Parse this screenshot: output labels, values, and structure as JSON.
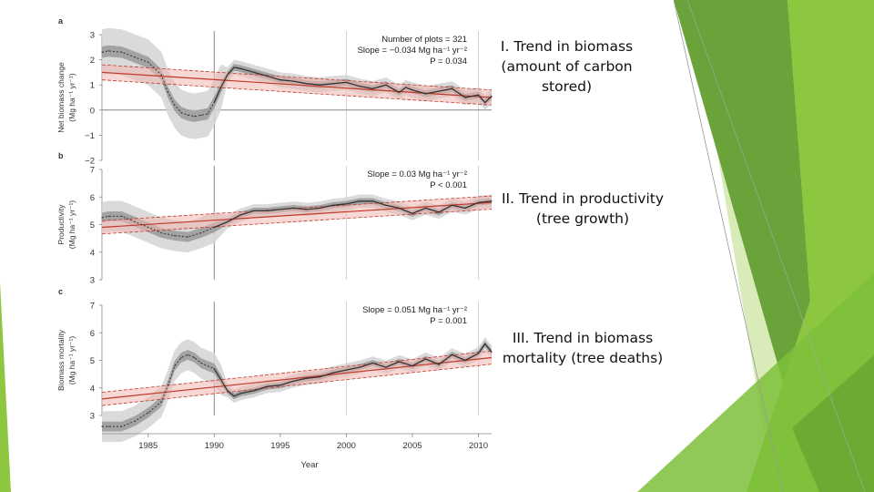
{
  "captions": [
    {
      "lines": [
        "I. Trend in biomass",
        "(amount of carbon",
        "stored)"
      ]
    },
    {
      "lines": [
        "II. Trend in productivity",
        "(tree growth)"
      ]
    },
    {
      "lines": [
        "III. Trend in biomass",
        "mortality (tree deaths)"
      ]
    }
  ],
  "colors": {
    "trend_line": "#c0392b",
    "trend_band": "#f2b8b0",
    "series_line": "#333333",
    "band_dark": "#777777",
    "band_light": "#d4d4d4",
    "green_1": "#8dc63f",
    "green_2": "#6aa33a",
    "green_3": "#c9e29b"
  },
  "chart_data": [
    {
      "type": "line",
      "panel_label": "a",
      "ylabel": "Net biomass change",
      "ylabel_units": "(Mg ha⁻¹ yr⁻¹)",
      "ylim": [
        -2,
        3
      ],
      "yticks": [
        "3",
        "2",
        "1",
        "0",
        "−1",
        "−2"
      ],
      "xlim": [
        1981.5,
        2011
      ],
      "xticks": [
        "1985",
        "1990",
        "1995",
        "2000",
        "2005",
        "2010"
      ],
      "xlabel": "Year",
      "annotations": [
        "Number of plots = 321",
        "Slope = −0.034 Mg ha⁻¹ yr⁻²",
        "P = 0.034"
      ],
      "reference_lines_x": [
        1990,
        2000,
        2010
      ],
      "reference_line_y": 0,
      "series": [
        {
          "name": "",
          "x": [
            1981.5,
            1982,
            1983,
            1984,
            1985,
            1986,
            1986.5,
            1987,
            1987.5,
            1988,
            1988.5,
            1989,
            1989.5,
            1990,
            1990.5,
            1991,
            1991.5,
            1992,
            1993,
            1994,
            1995,
            1996,
            1997,
            1998,
            1999,
            2000,
            2001,
            2002,
            2003,
            2004,
            2004.5,
            2005,
            2006,
            2007,
            2008,
            2009,
            2010,
            2010.5,
            2011
          ],
          "y": [
            2.3,
            2.35,
            2.3,
            2.1,
            1.9,
            1.4,
            0.7,
            0.2,
            -0.1,
            -0.2,
            -0.25,
            -0.2,
            -0.15,
            0.3,
            0.9,
            1.4,
            1.7,
            1.65,
            1.5,
            1.35,
            1.2,
            1.15,
            1.05,
            1.0,
            1.05,
            1.1,
            0.95,
            0.85,
            1.0,
            0.7,
            0.9,
            0.8,
            0.65,
            0.75,
            0.85,
            0.5,
            0.6,
            0.3,
            0.55
          ]
        }
      ],
      "trend": {
        "x": [
          1981.5,
          2011
        ],
        "y": [
          1.5,
          0.5
        ]
      }
    },
    {
      "type": "line",
      "panel_label": "b",
      "ylabel": "Productivity",
      "ylabel_units": "(Mg ha⁻¹ yr⁻¹)",
      "ylim": [
        3,
        7
      ],
      "yticks": [
        "7",
        "6",
        "5",
        "4",
        "3"
      ],
      "xlim": [
        1981.5,
        2011
      ],
      "xticks": [
        "1985",
        "1990",
        "1995",
        "2000",
        "2005",
        "2010"
      ],
      "xlabel": "Year",
      "annotations": [
        "Slope = 0.03 Mg ha⁻¹ yr⁻²",
        "P < 0.001"
      ],
      "reference_lines_x": [
        1990,
        2000,
        2010
      ],
      "series": [
        {
          "name": "",
          "x": [
            1981.5,
            1982,
            1983,
            1984,
            1985,
            1986,
            1987,
            1988,
            1989,
            1990,
            1991,
            1992,
            1993,
            1994,
            1995,
            1996,
            1997,
            1998,
            1999,
            2000,
            2001,
            2002,
            2003,
            2004,
            2005,
            2006,
            2007,
            2008,
            2009,
            2010,
            2011
          ],
          "y": [
            5.25,
            5.3,
            5.3,
            5.1,
            4.9,
            4.7,
            4.6,
            4.55,
            4.7,
            4.9,
            5.1,
            5.35,
            5.5,
            5.5,
            5.55,
            5.6,
            5.55,
            5.6,
            5.7,
            5.75,
            5.85,
            5.85,
            5.7,
            5.6,
            5.4,
            5.6,
            5.45,
            5.7,
            5.6,
            5.8,
            5.85
          ]
        }
      ],
      "trend": {
        "x": [
          1981.5,
          2011
        ],
        "y": [
          4.9,
          5.8
        ]
      }
    },
    {
      "type": "line",
      "panel_label": "c",
      "ylabel": "Biomass mortality",
      "ylabel_units": "(Mg ha⁻¹ yr⁻¹)",
      "ylim": [
        3,
        7
      ],
      "yticks": [
        "7",
        "6",
        "5",
        "4",
        "3"
      ],
      "xlim": [
        1981.5,
        2011
      ],
      "xticks": [
        "1985",
        "1990",
        "1995",
        "2000",
        "2005",
        "2010"
      ],
      "xlabel": "Year",
      "annotations": [
        "Slope = 0.051 Mg ha⁻¹ yr⁻²",
        "P = 0.001"
      ],
      "reference_lines_x": [
        1990,
        2000,
        2010
      ],
      "series": [
        {
          "name": "",
          "x": [
            1981.5,
            1982,
            1983,
            1984,
            1985,
            1986,
            1986.5,
            1987,
            1987.5,
            1988,
            1988.5,
            1989,
            1990,
            1990.5,
            1991,
            1991.5,
            1992,
            1993,
            1994,
            1995,
            1996,
            1997,
            1998,
            1999,
            2000,
            2001,
            2002,
            2003,
            2004,
            2005,
            2006,
            2007,
            2008,
            2009,
            2010,
            2010.5,
            2011
          ],
          "y": [
            2.6,
            2.6,
            2.6,
            2.8,
            3.1,
            3.5,
            4.1,
            4.8,
            5.1,
            5.2,
            5.1,
            4.9,
            4.7,
            4.3,
            3.9,
            3.7,
            3.8,
            3.9,
            4.05,
            4.1,
            4.25,
            4.35,
            4.4,
            4.55,
            4.65,
            4.75,
            4.9,
            4.75,
            4.95,
            4.8,
            5.05,
            4.85,
            5.2,
            5.0,
            5.25,
            5.6,
            5.3
          ]
        }
      ],
      "trend": {
        "x": [
          1981.5,
          2011
        ],
        "y": [
          3.6,
          5.1
        ]
      }
    }
  ]
}
